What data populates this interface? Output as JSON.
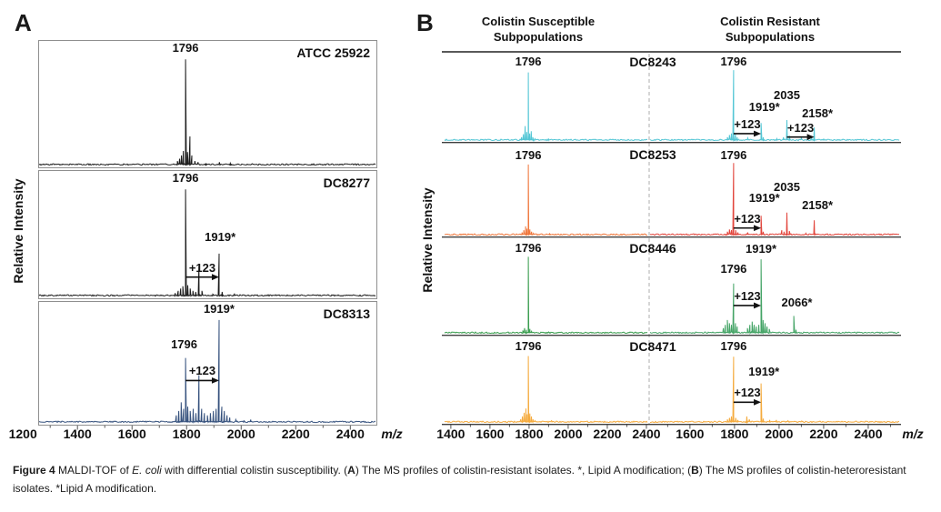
{
  "panel_a": {
    "label": "A",
    "ylabel": "Relative Intensity",
    "x_unit": "m/z",
    "x_ticks": [
      1200,
      1400,
      1600,
      1800,
      2000,
      2200,
      2400
    ]
  },
  "panel_b": {
    "label": "B",
    "ylabel": "Relative Intensity",
    "x_unit": "m/z",
    "col_left_header": [
      "Colistin Susceptible",
      "Subpopulations"
    ],
    "col_right_header": [
      "Colistin Resistant",
      "Subpopulations"
    ],
    "x_ticks_left": [
      1400,
      1600,
      1800,
      2000,
      2200,
      2400
    ],
    "x_ticks_right": [
      1600,
      1800,
      2000,
      2200,
      2400
    ]
  },
  "figure_caption": {
    "parts": [
      {
        "text": "Figure 4 ",
        "style": "b"
      },
      {
        "text": "MALDI-TOF of ",
        "style": ""
      },
      {
        "text": "E. coli",
        "style": "i"
      },
      {
        "text": " with differential colistin susceptibility. (",
        "style": ""
      },
      {
        "text": "A",
        "style": "b"
      },
      {
        "text": ") The MS profiles of colistin-resistant isolates. *, Lipid A modification; (",
        "style": ""
      },
      {
        "text": "B",
        "style": "b"
      },
      {
        "text": ") The MS profiles of colistin-heteroresistant isolates. *Lipid A modification.",
        "style": ""
      }
    ]
  },
  "chart_data": [
    {
      "type": "line",
      "panel": "A",
      "description": "MALDI-TOF mass spectra of colistin-resistant E. coli isolates",
      "xlabel": "m/z",
      "ylabel": "Relative Intensity",
      "x_range": [
        1200,
        2500
      ],
      "spectra": [
        {
          "name": "ATCC 25922",
          "color": "#1c1c1c",
          "peaks": [
            [
              1766,
              0.04
            ],
            [
              1774,
              0.06
            ],
            [
              1781,
              0.09
            ],
            [
              1788,
              0.13
            ],
            [
              1796,
              0.95
            ],
            [
              1803,
              0.12
            ],
            [
              1812,
              0.26
            ],
            [
              1819,
              0.09
            ],
            [
              1830,
              0.04
            ],
            [
              1842,
              0.03
            ],
            [
              1871,
              0.02
            ],
            [
              1920,
              0.03
            ],
            [
              1960,
              0.02
            ],
            [
              2040,
              0.015
            ]
          ],
          "labels": [
            {
              "text": "1796",
              "mz": 1796,
              "h": 0.99
            }
          ],
          "arrows": []
        },
        {
          "name": "DC8277",
          "color": "#1c1c1c",
          "peaks": [
            [
              1758,
              0.03
            ],
            [
              1769,
              0.05
            ],
            [
              1778,
              0.07
            ],
            [
              1786,
              0.09
            ],
            [
              1796,
              0.95
            ],
            [
              1804,
              0.1
            ],
            [
              1813,
              0.07
            ],
            [
              1823,
              0.05
            ],
            [
              1833,
              0.04
            ],
            [
              1845,
              0.27
            ],
            [
              1856,
              0.05
            ],
            [
              1896,
              0.02
            ],
            [
              1919,
              0.38
            ],
            [
              1930,
              0.04
            ],
            [
              1975,
              0.02
            ]
          ],
          "labels": [
            {
              "text": "1796",
              "mz": 1796,
              "h": 0.99
            },
            {
              "text": "1919*",
              "mz": 1923,
              "h": 0.47
            }
          ],
          "arrows": [
            {
              "text": "+123",
              "from": 1796,
              "to": 1919,
              "h": 0.18
            }
          ]
        },
        {
          "name": "DC8313",
          "color": "#35517d",
          "peaks": [
            [
              1762,
              0.07
            ],
            [
              1771,
              0.11
            ],
            [
              1780,
              0.19
            ],
            [
              1789,
              0.13
            ],
            [
              1796,
              0.6
            ],
            [
              1804,
              0.15
            ],
            [
              1813,
              0.11
            ],
            [
              1824,
              0.13
            ],
            [
              1834,
              0.09
            ],
            [
              1845,
              0.44
            ],
            [
              1855,
              0.13
            ],
            [
              1865,
              0.09
            ],
            [
              1876,
              0.07
            ],
            [
              1887,
              0.09
            ],
            [
              1898,
              0.11
            ],
            [
              1908,
              0.13
            ],
            [
              1919,
              0.95
            ],
            [
              1929,
              0.15
            ],
            [
              1938,
              0.11
            ],
            [
              1948,
              0.07
            ],
            [
              1958,
              0.05
            ],
            [
              1980,
              0.03
            ],
            [
              2010,
              0.02
            ],
            [
              2035,
              0.03
            ]
          ],
          "labels": [
            {
              "text": "1919*",
              "mz": 1919,
              "h": 0.99
            },
            {
              "text": "1796",
              "mz": 1791,
              "h": 0.66
            }
          ],
          "arrows": [
            {
              "text": "+123",
              "from": 1796,
              "to": 1919,
              "h": 0.4
            }
          ]
        }
      ]
    },
    {
      "type": "line",
      "panel": "B",
      "description": "MALDI-TOF mass spectra of colistin-heteroresistant E. coli isolates: susceptible vs resistant subpopulations",
      "xlabel": "m/z",
      "ylabel": "Relative Intensity",
      "x_range_left": [
        1400,
        2400
      ],
      "x_range_right": [
        1600,
        2400
      ],
      "rows": [
        {
          "name": "DC8243",
          "left": {
            "color": "#53c6d5",
            "peaks": [
              [
                1762,
                0.05
              ],
              [
                1771,
                0.09
              ],
              [
                1780,
                0.2
              ],
              [
                1788,
                0.12
              ],
              [
                1796,
                0.92
              ],
              [
                1803,
                0.1
              ],
              [
                1811,
                0.13
              ],
              [
                1819,
                0.05
              ],
              [
                1830,
                0.03
              ],
              [
                1900,
                0.02
              ]
            ],
            "labels": [
              {
                "text": "1796",
                "mz": 1796,
                "h": 0.97
              }
            ],
            "arrows": []
          },
          "right": {
            "color": "#53c6d5",
            "peaks": [
              [
                1768,
                0.05
              ],
              [
                1777,
                0.08
              ],
              [
                1786,
                0.1
              ],
              [
                1796,
                0.95
              ],
              [
                1804,
                0.09
              ],
              [
                1812,
                0.05
              ],
              [
                1859,
                0.04
              ],
              [
                1919,
                0.24
              ],
              [
                1929,
                0.05
              ],
              [
                1990,
                0.03
              ],
              [
                2020,
                0.05
              ],
              [
                2035,
                0.28
              ],
              [
                2046,
                0.07
              ],
              [
                2100,
                0.04
              ],
              [
                2146,
                0.04
              ],
              [
                2158,
                0.18
              ],
              [
                2200,
                0.02
              ]
            ],
            "labels": [
              {
                "text": "1796",
                "mz": 1796,
                "h": 0.97
              },
              {
                "text": "2035",
                "mz": 2035,
                "h": 0.53
              },
              {
                "text": "1919*",
                "mz": 1934,
                "h": 0.36
              },
              {
                "text": "2158*",
                "mz": 2172,
                "h": 0.28
              }
            ],
            "arrows": [
              {
                "text": "+123",
                "from": 1796,
                "to": 1919,
                "h": 0.11
              },
              {
                "text": "+123",
                "from": 2035,
                "to": 2158,
                "h": 0.065
              }
            ]
          }
        },
        {
          "name": "DC8253",
          "left": {
            "color": "#f0773c",
            "peaks": [
              [
                1764,
                0.04
              ],
              [
                1773,
                0.07
              ],
              [
                1782,
                0.12
              ],
              [
                1789,
                0.09
              ],
              [
                1796,
                0.93
              ],
              [
                1804,
                0.08
              ],
              [
                1813,
                0.05
              ],
              [
                1822,
                0.03
              ],
              [
                1905,
                0.02
              ]
            ],
            "labels": [
              {
                "text": "1796",
                "mz": 1796,
                "h": 0.97
              }
            ],
            "arrows": []
          },
          "right": {
            "color": "#e2453c",
            "peaks": [
              [
                1768,
                0.05
              ],
              [
                1777,
                0.08
              ],
              [
                1786,
                0.07
              ],
              [
                1796,
                0.95
              ],
              [
                1805,
                0.07
              ],
              [
                1815,
                0.04
              ],
              [
                1859,
                0.04
              ],
              [
                1919,
                0.26
              ],
              [
                1929,
                0.05
              ],
              [
                2012,
                0.07
              ],
              [
                2022,
                0.05
              ],
              [
                2035,
                0.3
              ],
              [
                2046,
                0.06
              ],
              [
                2120,
                0.03
              ],
              [
                2158,
                0.2
              ]
            ],
            "labels": [
              {
                "text": "1796",
                "mz": 1796,
                "h": 0.97
              },
              {
                "text": "2035",
                "mz": 2035,
                "h": 0.55
              },
              {
                "text": "1919*",
                "mz": 1934,
                "h": 0.4
              },
              {
                "text": "2158*",
                "mz": 2172,
                "h": 0.31
              }
            ],
            "arrows": [
              {
                "text": "+123",
                "from": 1796,
                "to": 1919,
                "h": 0.11
              }
            ]
          }
        },
        {
          "name": "DC8446",
          "left": {
            "color": "#3b9e50",
            "peaks": [
              [
                1768,
                0.04
              ],
              [
                1777,
                0.07
              ],
              [
                1786,
                0.05
              ],
              [
                1796,
                0.95
              ],
              [
                1804,
                0.06
              ],
              [
                1813,
                0.03
              ],
              [
                1900,
                0.015
              ]
            ],
            "labels": [
              {
                "text": "1796",
                "mz": 1796,
                "h": 0.98
              }
            ],
            "arrows": []
          },
          "right": {
            "color": "#44a466",
            "peaks": [
              [
                1750,
                0.07
              ],
              [
                1759,
                0.11
              ],
              [
                1768,
                0.17
              ],
              [
                1777,
                0.13
              ],
              [
                1786,
                0.11
              ],
              [
                1796,
                0.62
              ],
              [
                1804,
                0.13
              ],
              [
                1812,
                0.09
              ],
              [
                1858,
                0.07
              ],
              [
                1869,
                0.11
              ],
              [
                1879,
                0.15
              ],
              [
                1888,
                0.11
              ],
              [
                1898,
                0.09
              ],
              [
                1909,
                0.11
              ],
              [
                1919,
                0.92
              ],
              [
                1928,
                0.17
              ],
              [
                1937,
                0.13
              ],
              [
                1946,
                0.09
              ],
              [
                1956,
                0.06
              ],
              [
                2066,
                0.22
              ],
              [
                2076,
                0.05
              ]
            ],
            "labels": [
              {
                "text": "1796",
                "mz": 1796,
                "h": 0.72
              },
              {
                "text": "1919*",
                "mz": 1919,
                "h": 0.97
              },
              {
                "text": "2066*",
                "mz": 2080,
                "h": 0.3
              }
            ],
            "arrows": [
              {
                "text": "+123",
                "from": 1796,
                "to": 1919,
                "h": 0.36
              }
            ]
          }
        },
        {
          "name": "DC8471",
          "left": {
            "color": "#f5ab3e",
            "peaks": [
              [
                1757,
                0.05
              ],
              [
                1766,
                0.09
              ],
              [
                1775,
                0.14
              ],
              [
                1784,
                0.2
              ],
              [
                1790,
                0.12
              ],
              [
                1796,
                0.93
              ],
              [
                1804,
                0.13
              ],
              [
                1812,
                0.09
              ],
              [
                1820,
                0.05
              ],
              [
                1831,
                0.03
              ],
              [
                1915,
                0.03
              ]
            ],
            "labels": [
              {
                "text": "1796",
                "mz": 1796,
                "h": 0.98
              }
            ],
            "arrows": []
          },
          "right": {
            "color": "#f5ab3e",
            "peaks": [
              [
                1768,
                0.05
              ],
              [
                1777,
                0.07
              ],
              [
                1786,
                0.09
              ],
              [
                1796,
                0.92
              ],
              [
                1805,
                0.07
              ],
              [
                1815,
                0.04
              ],
              [
                1855,
                0.09
              ],
              [
                1866,
                0.05
              ],
              [
                1919,
                0.55
              ],
              [
                1929,
                0.06
              ],
              [
                1958,
                0.04
              ],
              [
                1988,
                0.04
              ],
              [
                2040,
                0.03
              ],
              [
                2100,
                0.02
              ]
            ],
            "labels": [
              {
                "text": "1796",
                "mz": 1796,
                "h": 0.97
              },
              {
                "text": "1919*",
                "mz": 1932,
                "h": 0.62
              }
            ],
            "arrows": [
              {
                "text": "+123",
                "from": 1796,
                "to": 1919,
                "h": 0.3
              }
            ]
          }
        }
      ]
    }
  ]
}
